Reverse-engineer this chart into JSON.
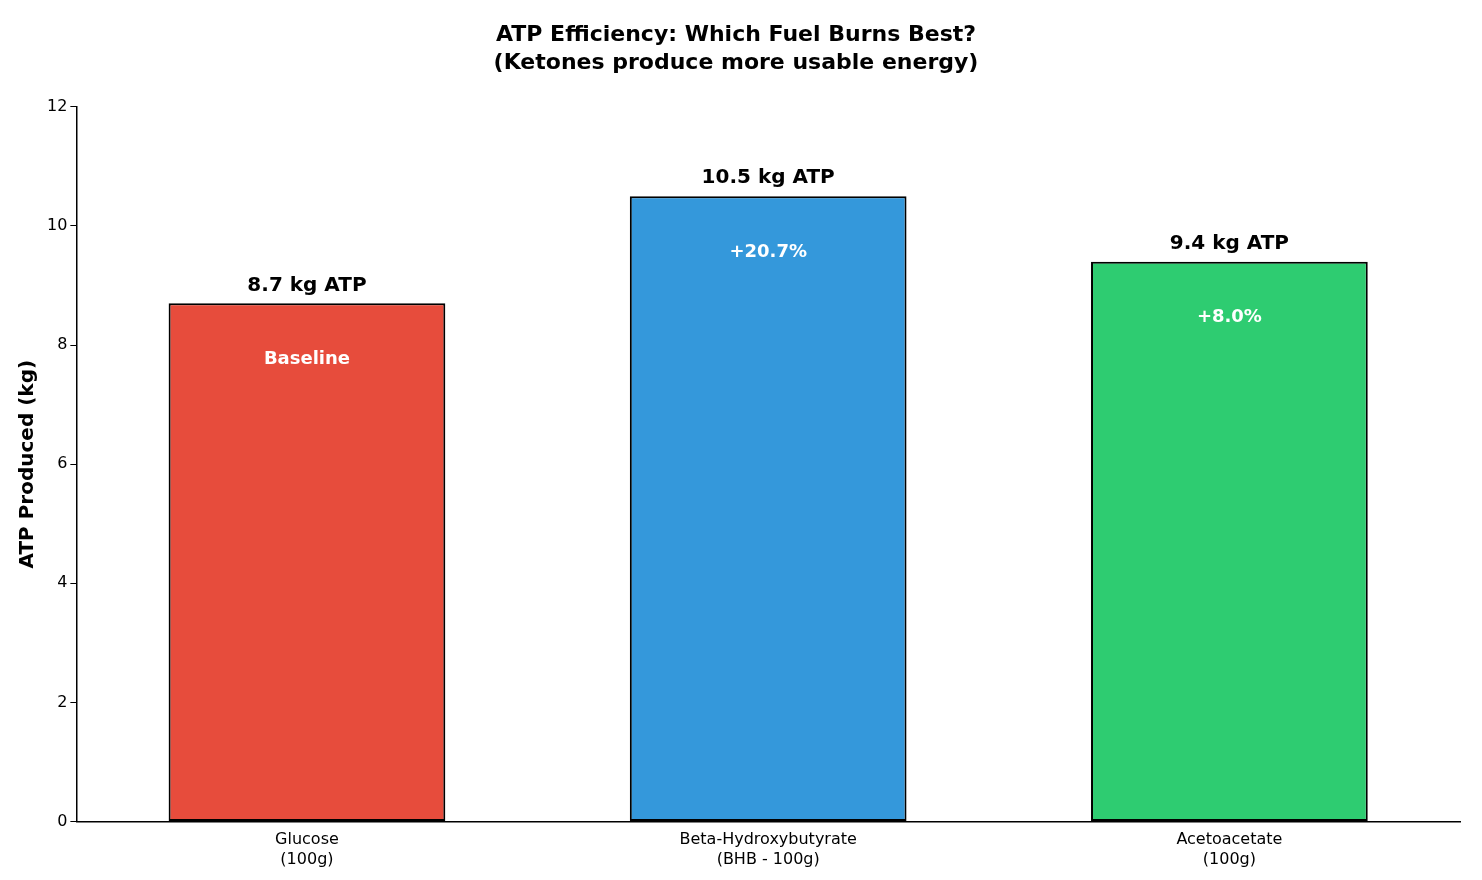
{
  "chart_data": {
    "type": "bar",
    "title": "ATP Efficiency: Which Fuel Burns Best?",
    "subtitle": "(Ketones produce more usable energy)",
    "ylabel": "ATP Produced (kg)",
    "categories": [
      "Glucose\n(100g)",
      "Beta-Hydroxybutyrate\n(BHB - 100g)",
      "Acetoacetate\n(100g)"
    ],
    "values": [
      8.7,
      10.5,
      9.4
    ],
    "colors": [
      "#e74c3c",
      "#3498db",
      "#2ecc71"
    ],
    "value_labels": [
      "8.7 kg ATP",
      "10.5 kg ATP",
      "9.4 kg ATP"
    ],
    "annotations": [
      "Baseline",
      "+20.7%",
      "+8.0%"
    ],
    "ylim": [
      0,
      12
    ],
    "yticks": [
      0,
      2,
      4,
      6,
      8,
      10,
      12
    ],
    "grid": false,
    "legend": false
  }
}
